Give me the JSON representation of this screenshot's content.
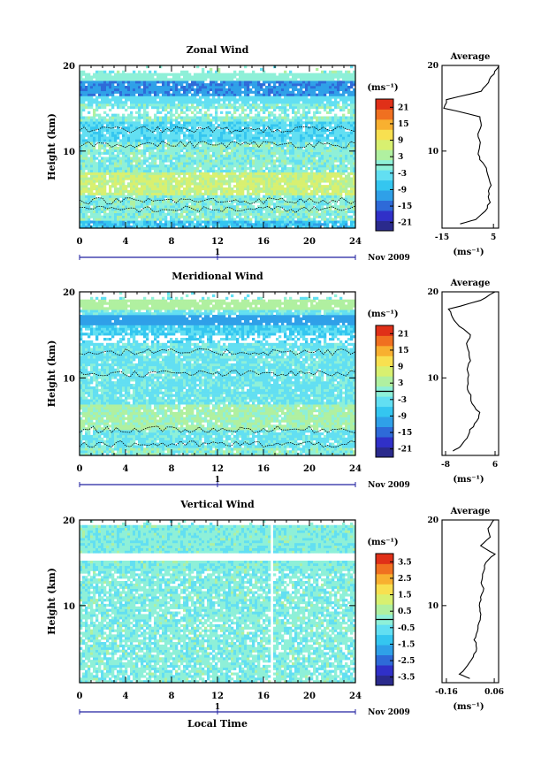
{
  "month_label": "Nov 2009",
  "day_marker": "1",
  "xlabel_bottom": "Local Time",
  "average_title": "Average",
  "unit_label": "(ms⁻¹)",
  "colors": {
    "scale": [
      "#2a2a8c",
      "#3030c8",
      "#2e6ad8",
      "#2fa0e8",
      "#34c6f0",
      "#62dff2",
      "#8ef0d8",
      "#b0f0a0",
      "#d8f070",
      "#f8e050",
      "#f8b030",
      "#f07020",
      "#e03018"
    ],
    "contour": "#000000",
    "axis": "#000000"
  },
  "chart_data": [
    {
      "type": "heatmap",
      "title": "Zonal Wind",
      "ylabel": "Height (km)",
      "xlim": [
        0,
        24
      ],
      "ylim": [
        1,
        20
      ],
      "x_ticks": [
        0,
        4,
        8,
        12,
        16,
        20,
        24
      ],
      "y_ticks": [
        10,
        20
      ],
      "colorbar": {
        "unit": "(ms⁻¹)",
        "range": [
          -24,
          24
        ],
        "ticks": [
          -21,
          -15,
          -9,
          -3,
          3,
          9,
          15,
          21
        ],
        "ticklabels": [
          "-21",
          "-15",
          "-9",
          "-3",
          "3",
          "9",
          "15",
          "21"
        ]
      },
      "average_profile": {
        "title": "Average",
        "xlabel": "(ms⁻¹)",
        "xlim": [
          -15,
          7
        ],
        "x_ticks": [
          -15,
          5
        ],
        "x_ticklabels": [
          "-15",
          "5"
        ],
        "height": [
          1.5,
          2,
          3,
          4,
          5,
          6,
          7,
          8,
          9,
          10,
          11,
          12,
          13,
          14,
          15,
          16,
          17,
          18,
          19,
          20
        ],
        "values": [
          -8,
          -2,
          2,
          3.5,
          3,
          4,
          3,
          2,
          0,
          -1,
          0,
          -1,
          0,
          0,
          -14,
          -13,
          0,
          3,
          5,
          7
        ]
      }
    },
    {
      "type": "heatmap",
      "title": "Meridional Wind",
      "ylabel": "Height (km)",
      "xlim": [
        0,
        24
      ],
      "ylim": [
        1,
        20
      ],
      "x_ticks": [
        0,
        4,
        8,
        12,
        16,
        20,
        24
      ],
      "y_ticks": [
        10,
        20
      ],
      "colorbar": {
        "unit": "(ms⁻¹)",
        "range": [
          -24,
          24
        ],
        "ticks": [
          -21,
          -15,
          -9,
          -3,
          3,
          9,
          15,
          21
        ],
        "ticklabels": [
          "-21",
          "-15",
          "-9",
          "-3",
          "3",
          "9",
          "15",
          "21"
        ]
      },
      "average_profile": {
        "title": "Average",
        "xlabel": "(ms⁻¹)",
        "xlim": [
          -9,
          7
        ],
        "x_ticks": [
          -8,
          6
        ],
        "x_ticklabels": [
          "-8",
          "6"
        ],
        "height": [
          1.5,
          2,
          3,
          4,
          5,
          6,
          7,
          8,
          9,
          10,
          11,
          12,
          13,
          14,
          15,
          16,
          17,
          18,
          19,
          20
        ],
        "values": [
          -6,
          -4,
          -2,
          -1,
          1,
          1.5,
          -0.5,
          -1,
          -2,
          -1.5,
          -2,
          -1,
          -1.5,
          -2,
          -1,
          -4,
          -6,
          -7,
          2,
          6
        ]
      }
    },
    {
      "type": "heatmap",
      "title": "Vertical Wind",
      "ylabel": "Height (km)",
      "xlabel": "Local Time",
      "xlim": [
        0,
        24
      ],
      "ylim": [
        1,
        20
      ],
      "x_ticks": [
        0,
        4,
        8,
        12,
        16,
        20,
        24
      ],
      "y_ticks": [
        10,
        20
      ],
      "colorbar": {
        "unit": "(ms⁻¹)",
        "range": [
          -4,
          4
        ],
        "ticks": [
          -3.5,
          -2.5,
          -1.5,
          -0.5,
          0.5,
          1.5,
          2.5,
          3.5
        ],
        "ticklabels": [
          "-3.5",
          "-2.5",
          "-1.5",
          "-0.5",
          "0.5",
          "1.5",
          "2.5",
          "3.5"
        ]
      },
      "average_profile": {
        "title": "Average",
        "xlabel": "(ms⁻¹)",
        "xlim": [
          -0.18,
          0.08
        ],
        "x_ticks": [
          -0.16,
          0.06
        ],
        "x_ticklabels": [
          "-0.16",
          "0.06"
        ],
        "height": [
          1.5,
          2,
          3,
          4,
          5,
          6,
          7,
          8,
          9,
          10,
          11,
          12,
          13,
          14,
          15,
          16,
          17,
          18,
          19,
          20
        ],
        "values": [
          -0.05,
          -0.1,
          -0.06,
          -0.04,
          -0.02,
          -0.03,
          -0.02,
          -0.01,
          0.0,
          -0.01,
          0.0,
          0.01,
          0.0,
          0.01,
          0.02,
          0.06,
          0.0,
          0.04,
          0.03,
          0.06
        ]
      }
    }
  ]
}
